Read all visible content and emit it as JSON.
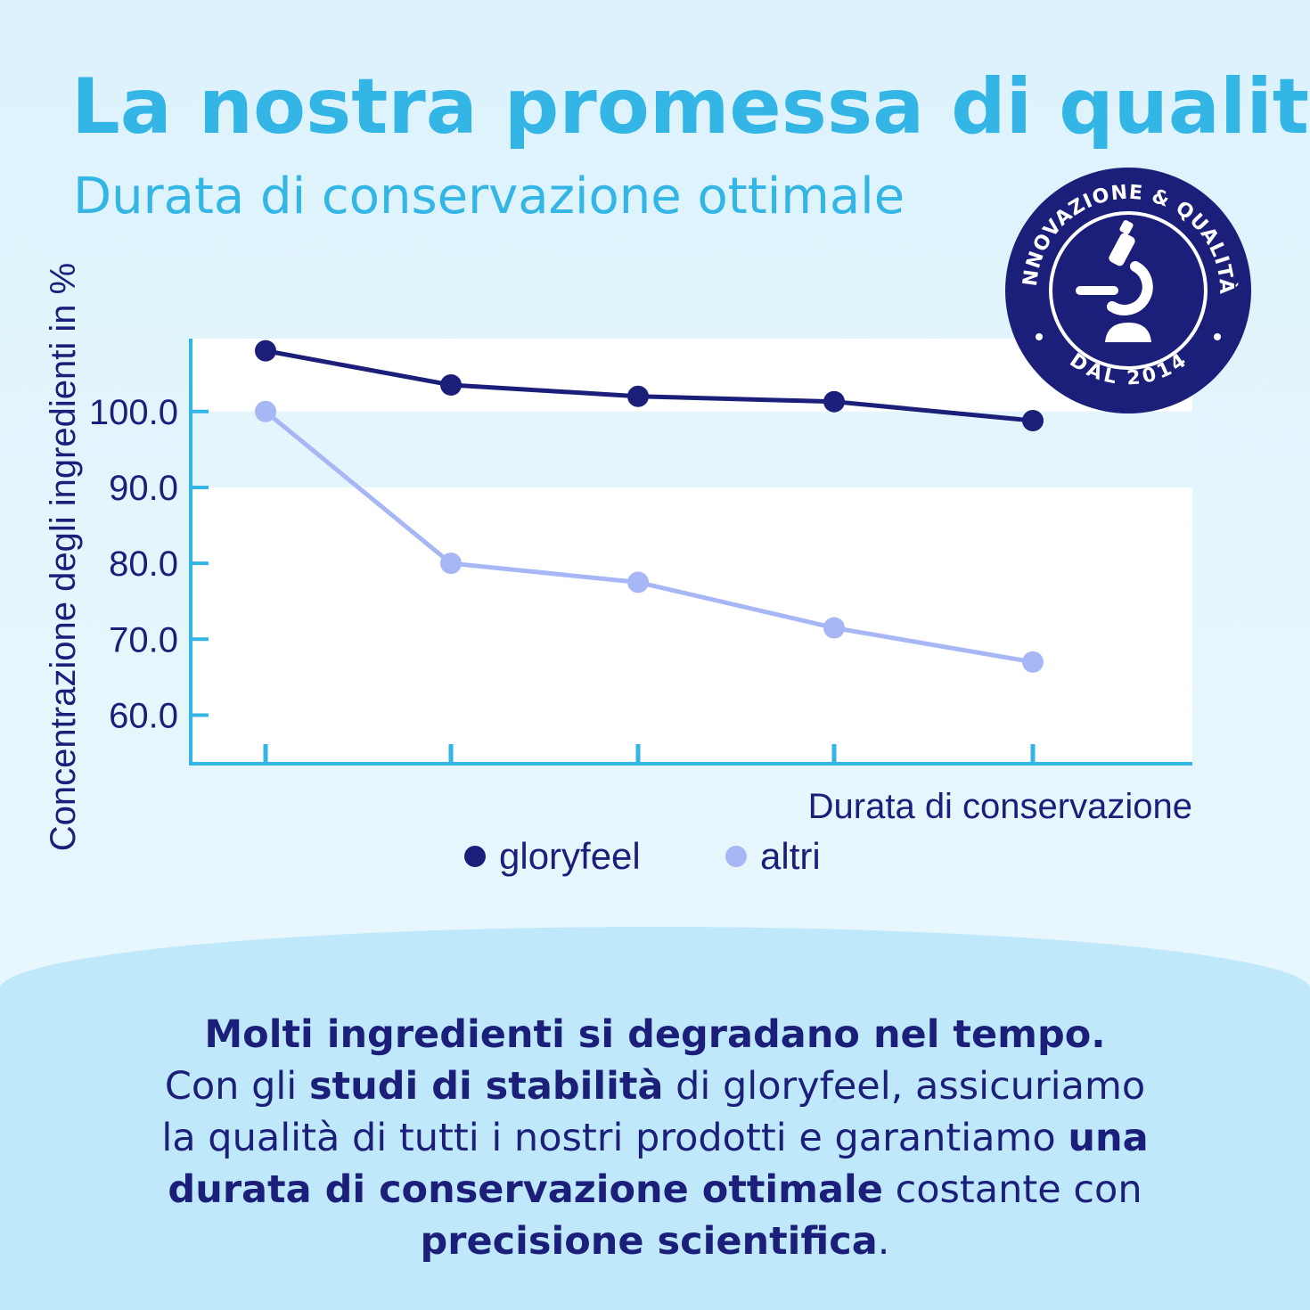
{
  "header": {
    "title": "La nostra promessa di qualità",
    "subtitle": "Durata di conservazione ottimale"
  },
  "badge": {
    "top_text": "INNOVAZIONE & QUALITÀ",
    "bottom_text": "DAL 2014",
    "icon": "microscope-icon",
    "color": "#1b1f7a"
  },
  "chart_data": {
    "type": "line",
    "x": [
      1,
      2,
      3,
      4,
      5
    ],
    "ylabel": "Concentrazione degli ingredienti in %",
    "xlabel": "Durata di conservazione",
    "yticks": [
      "60.0",
      "70.0",
      "80.0",
      "90.0",
      "100.0"
    ],
    "ylim": [
      53.6,
      109.6
    ],
    "series": [
      {
        "name": "gloryfeel",
        "color": "#1b1f7a",
        "values": [
          108.0,
          103.5,
          102.0,
          101.3,
          98.8
        ]
      },
      {
        "name": "altri",
        "color": "#a7b6f5",
        "values": [
          100.0,
          80.0,
          77.5,
          71.5,
          67.0
        ]
      }
    ],
    "legend_position": "bottom-center",
    "grid": false
  },
  "body": {
    "line1": "Molti ingredienti si degradano nel tempo.",
    "line2_a": "Con gli ",
    "line2_b": "studi di stabilità",
    "line2_c": " di gloryfeel, assicuriamo",
    "line3_a": "la qualità di tutti i nostri prodotti e garantiamo ",
    "line3_b": "una",
    "line4_a": "durata di conservazione ottimale",
    "line4_b": " costante con",
    "line5_a": "precisione scientifica",
    "line5_b": "."
  }
}
